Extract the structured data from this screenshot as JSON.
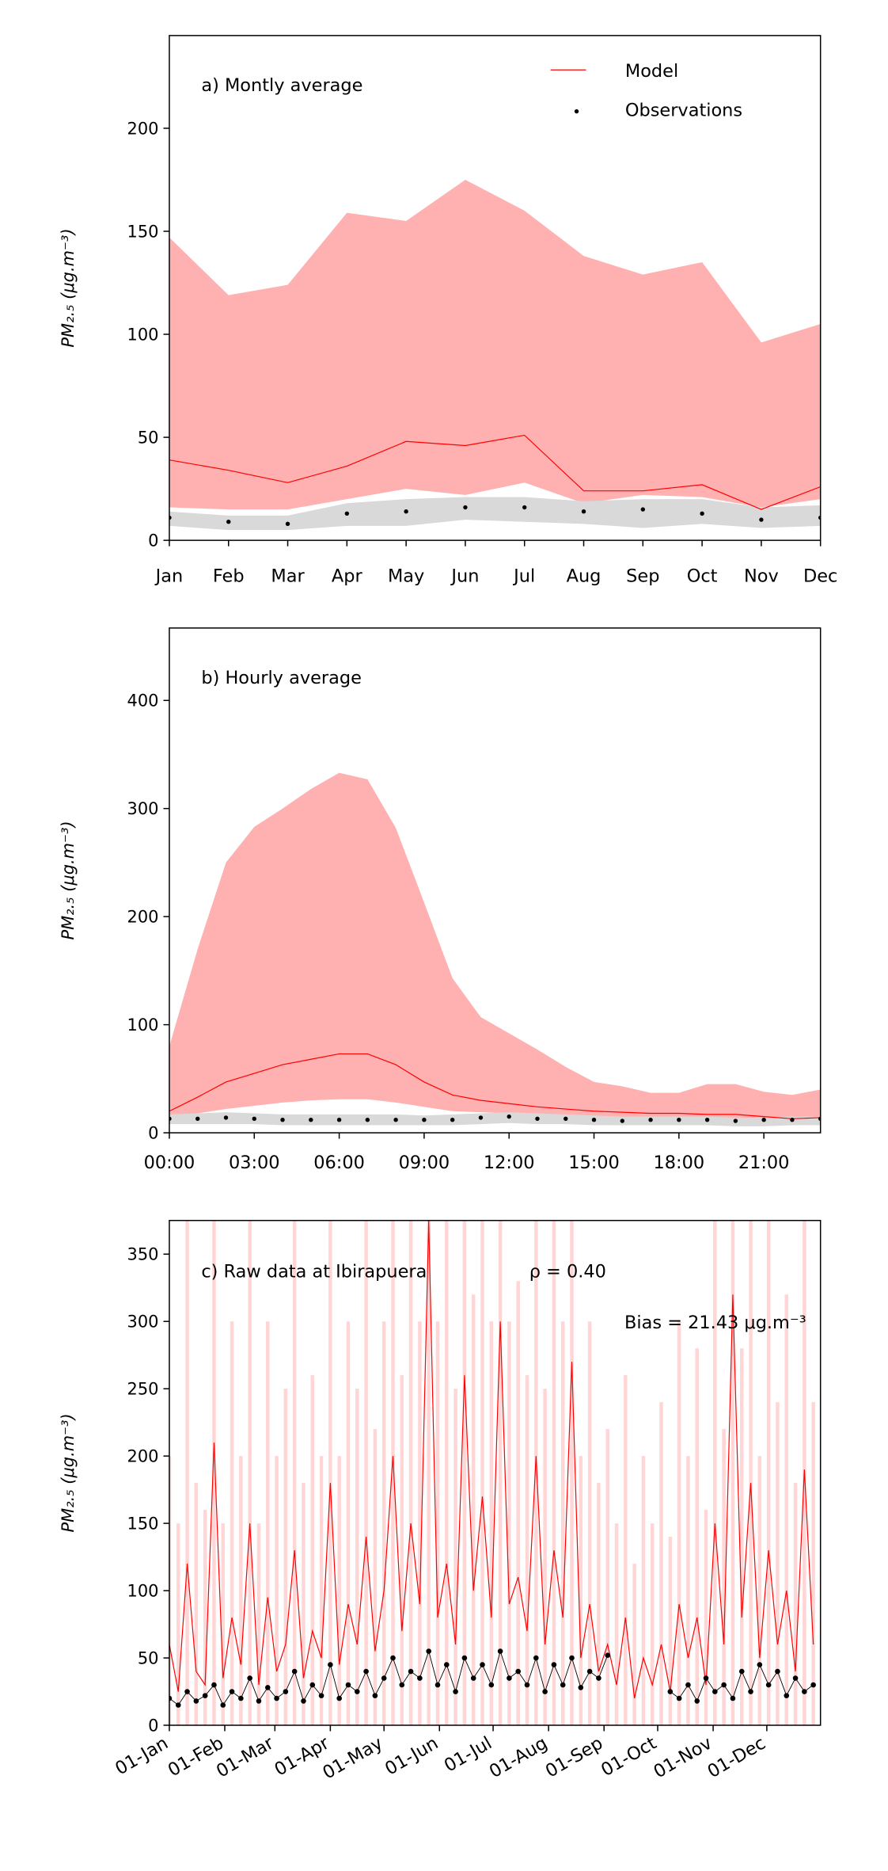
{
  "chart_data": [
    {
      "type": "line",
      "annotation": "a) Montly average",
      "ylabel": "PM₂.₅ (μg.m⁻³)",
      "legend": "upper right",
      "categories": [
        "Jan",
        "Feb",
        "Mar",
        "Apr",
        "May",
        "Jun",
        "Jul",
        "Aug",
        "Sep",
        "Oct",
        "Nov",
        "Dec"
      ],
      "ylim": [
        0,
        245
      ],
      "yticks": [
        0,
        50,
        100,
        150,
        200
      ],
      "series": [
        {
          "name": "Model",
          "color": "#ff0000",
          "style": "line",
          "band_color": "#ffb0b0",
          "values": [
            39,
            34,
            28,
            36,
            48,
            46,
            51,
            24,
            24,
            27,
            15,
            26
          ],
          "band_upper": [
            147,
            119,
            124,
            159,
            155,
            175,
            160,
            138,
            129,
            135,
            96,
            105
          ],
          "band_lower": [
            16,
            15,
            15,
            20,
            25,
            22,
            28,
            18,
            22,
            21,
            16,
            20
          ]
        },
        {
          "name": "Observations",
          "color": "#000000",
          "style": "dots",
          "band_color": "#d9d9d9",
          "values": [
            11,
            9,
            8,
            13,
            14,
            16,
            16,
            14,
            15,
            13,
            10,
            11
          ],
          "band_upper": [
            14,
            12,
            12,
            18,
            20,
            21,
            21,
            19,
            20,
            20,
            16,
            17
          ],
          "band_lower": [
            7,
            5,
            5,
            7,
            7,
            10,
            9,
            8,
            6,
            8,
            6,
            7
          ]
        }
      ]
    },
    {
      "type": "line",
      "annotation": "b) Hourly average",
      "ylabel": "PM₂.₅ (μg.m⁻³)",
      "x": [
        0,
        1,
        2,
        3,
        4,
        5,
        6,
        7,
        8,
        9,
        10,
        11,
        12,
        13,
        14,
        15,
        16,
        17,
        18,
        19,
        20,
        21,
        22,
        23
      ],
      "xlim": [
        0,
        23
      ],
      "xticks": [
        {
          "value": 0,
          "label": "00:00"
        },
        {
          "value": 3,
          "label": "03:00"
        },
        {
          "value": 6,
          "label": "06:00"
        },
        {
          "value": 9,
          "label": "09:00"
        },
        {
          "value": 12,
          "label": "12:00"
        },
        {
          "value": 15,
          "label": "15:00"
        },
        {
          "value": 18,
          "label": "18:00"
        },
        {
          "value": 21,
          "label": "21:00"
        }
      ],
      "ylim": [
        0,
        467
      ],
      "yticks": [
        0,
        100,
        200,
        300,
        400
      ],
      "series": [
        {
          "color": "#ff0000",
          "style": "line",
          "band_color": "#ffb0b0",
          "values": [
            20,
            33,
            47,
            55,
            63,
            68,
            73,
            73,
            63,
            47,
            35,
            30,
            27,
            24,
            22,
            20,
            19,
            18,
            18,
            17,
            17,
            15,
            13,
            14
          ],
          "band_upper": [
            80,
            170,
            250,
            283,
            300,
            318,
            333,
            327,
            282,
            213,
            143,
            107,
            92,
            77,
            61,
            47,
            43,
            37,
            37,
            45,
            45,
            38,
            35,
            40
          ],
          "band_lower": [
            14,
            18,
            22,
            25,
            28,
            30,
            31,
            31,
            28,
            24,
            20,
            19,
            18,
            17,
            16,
            15,
            14,
            14,
            14,
            14,
            13,
            13,
            12,
            12
          ]
        },
        {
          "color": "#000000",
          "style": "dots",
          "band_color": "#d9d9d9",
          "values": [
            13,
            13,
            14,
            13,
            12,
            12,
            12,
            12,
            12,
            12,
            12,
            14,
            15,
            13,
            13,
            12,
            11,
            12,
            12,
            12,
            11,
            12,
            12,
            13
          ],
          "band_upper": [
            17,
            18,
            19,
            18,
            17,
            17,
            17,
            17,
            17,
            16,
            17,
            18,
            19,
            18,
            17,
            16,
            15,
            15,
            15,
            15,
            14,
            14,
            15,
            15
          ],
          "band_lower": [
            8,
            8,
            8,
            8,
            7,
            7,
            7,
            7,
            7,
            7,
            7,
            8,
            9,
            8,
            8,
            7,
            7,
            7,
            7,
            7,
            6,
            6,
            7,
            7
          ]
        }
      ]
    },
    {
      "type": "line",
      "annotations": [
        "c) Raw data at Ibirapuera",
        "ρ = 0.40",
        "Bias = 21.43 μg.m⁻³"
      ],
      "ylabel": "PM₂.₅ (μg.m⁻³)",
      "x": [
        "01-Jan",
        "06-Jan",
        "11-Jan",
        "16-Jan",
        "21-Jan",
        "26-Jan",
        "31-Jan",
        "05-Feb",
        "10-Feb",
        "15-Feb",
        "20-Feb",
        "25-Feb",
        "02-Mar",
        "07-Mar",
        "12-Mar",
        "17-Mar",
        "22-Mar",
        "27-Mar",
        "01-Apr",
        "06-Apr",
        "11-Apr",
        "16-Apr",
        "21-Apr",
        "26-Apr",
        "01-May",
        "06-May",
        "11-May",
        "16-May",
        "21-May",
        "26-May",
        "31-May",
        "05-Jun",
        "10-Jun",
        "15-Jun",
        "20-Jun",
        "25-Jun",
        "30-Jun",
        "05-Jul",
        "10-Jul",
        "15-Jul",
        "20-Jul",
        "25-Jul",
        "30-Jul",
        "04-Aug",
        "09-Aug",
        "14-Aug",
        "19-Aug",
        "24-Aug",
        "29-Aug",
        "03-Sep",
        "08-Sep",
        "13-Sep",
        "18-Sep",
        "23-Sep",
        "28-Sep",
        "03-Oct",
        "08-Oct",
        "13-Oct",
        "18-Oct",
        "23-Oct",
        "28-Oct",
        "02-Nov",
        "07-Nov",
        "12-Nov",
        "17-Nov",
        "22-Nov",
        "27-Nov",
        "02-Dec",
        "07-Dec",
        "12-Dec",
        "17-Dec",
        "22-Dec",
        "27-Dec"
      ],
      "xlim": [
        "01-Jan",
        "31-Dec"
      ],
      "xticks": [
        "01-Jan",
        "01-Feb",
        "01-Mar",
        "01-Apr",
        "01-May",
        "01-Jun",
        "01-Jul",
        "01-Aug",
        "01-Sep",
        "01-Oct",
        "01-Nov",
        "01-Dec"
      ],
      "ylim": [
        0,
        375
      ],
      "yticks": [
        0,
        50,
        100,
        150,
        200,
        250,
        300,
        350
      ],
      "series": [
        {
          "color": "#ff0000",
          "style": "line",
          "band_color": "#ffd5d5",
          "values": [
            60,
            25,
            120,
            40,
            30,
            210,
            35,
            80,
            45,
            150,
            30,
            95,
            40,
            60,
            130,
            35,
            70,
            50,
            180,
            45,
            90,
            60,
            140,
            55,
            100,
            200,
            70,
            150,
            90,
            375,
            80,
            120,
            60,
            260,
            100,
            170,
            80,
            300,
            90,
            110,
            70,
            200,
            60,
            130,
            80,
            270,
            50,
            90,
            40,
            60,
            30,
            80,
            20,
            50,
            30,
            60,
            25,
            90,
            50,
            80,
            30,
            150,
            60,
            320,
            80,
            180,
            50,
            130,
            60,
            100,
            40,
            190,
            60
          ],
          "band_upper": [
            200,
            150,
            375,
            180,
            160,
            375,
            150,
            300,
            200,
            375,
            150,
            300,
            200,
            250,
            375,
            180,
            260,
            200,
            375,
            200,
            300,
            250,
            375,
            220,
            300,
            375,
            260,
            375,
            300,
            375,
            300,
            375,
            250,
            375,
            320,
            375,
            300,
            375,
            300,
            330,
            260,
            375,
            250,
            375,
            300,
            375,
            200,
            300,
            180,
            220,
            150,
            260,
            120,
            200,
            150,
            240,
            140,
            300,
            200,
            280,
            160,
            375,
            220,
            375,
            280,
            375,
            200,
            375,
            240,
            320,
            180,
            375,
            240
          ]
        },
        {
          "color": "#000000",
          "style": "dotline",
          "values": [
            20,
            15,
            25,
            18,
            22,
            30,
            15,
            25,
            20,
            35,
            18,
            28,
            20,
            25,
            40,
            18,
            30,
            22,
            45,
            20,
            30,
            25,
            40,
            22,
            35,
            50,
            30,
            40,
            35,
            55,
            30,
            45,
            25,
            50,
            35,
            45,
            30,
            55,
            35,
            40,
            30,
            50,
            25,
            45,
            30,
            50,
            28,
            40,
            35,
            52,
            null,
            null,
            null,
            null,
            null,
            null,
            25,
            20,
            30,
            18,
            35,
            25,
            30,
            20,
            40,
            25,
            45,
            30,
            40,
            22,
            35,
            25,
            30
          ]
        }
      ]
    }
  ]
}
